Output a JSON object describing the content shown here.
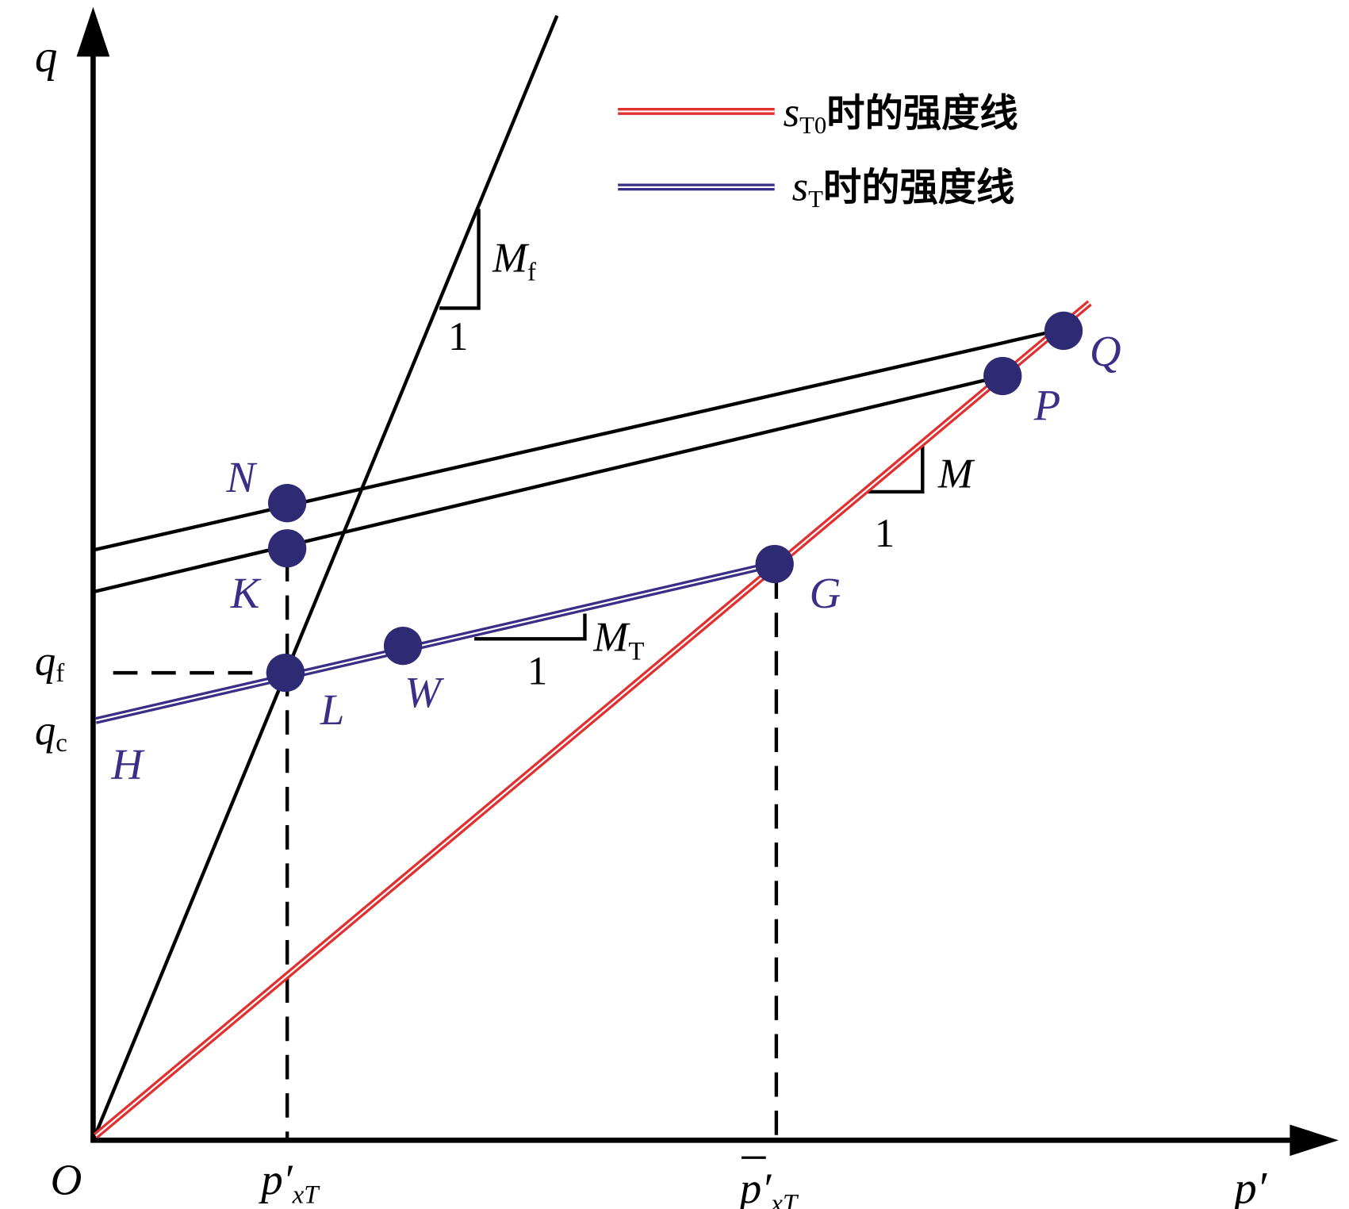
{
  "axes": {
    "y": "q",
    "x": "p′",
    "origin": "O"
  },
  "y_markers": [
    {
      "base": "q",
      "sub": "f"
    },
    {
      "base": "q",
      "sub": "c"
    }
  ],
  "x_markers": [
    {
      "base": "p′",
      "sub": "xT"
    },
    {
      "base": "p′",
      "sub": "xT"
    }
  ],
  "points": {
    "N": "N",
    "K": "K",
    "L": "L",
    "W": "W",
    "G": "G",
    "P": "P",
    "Q": "Q",
    "H": "H"
  },
  "slopes": [
    {
      "base": "M",
      "sub": "f",
      "run": "1"
    },
    {
      "base": "M",
      "sub": "",
      "run": "1"
    },
    {
      "base": "M",
      "sub": "T",
      "run": "1"
    }
  ],
  "legend": [
    {
      "symbol": "s",
      "sub": "T0",
      "text": "时的强度线"
    },
    {
      "symbol": "s",
      "sub": "T",
      "text": "时的强度线"
    }
  ]
}
